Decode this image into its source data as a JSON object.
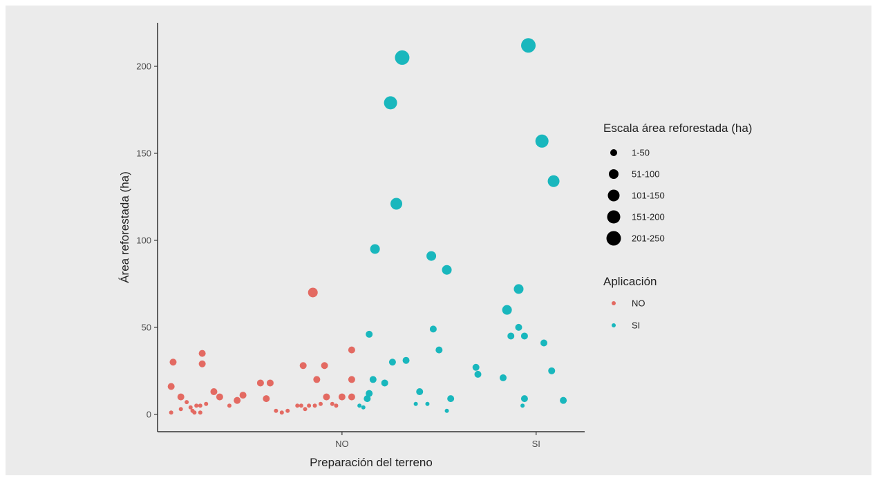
{
  "chart_data": {
    "type": "scatter",
    "title": "",
    "xlabel": "Preparación del terreno",
    "ylabel": "Área reforestada (ha)",
    "x_categories": [
      "NO",
      "SI"
    ],
    "ylim": [
      -10,
      225
    ],
    "y_ticks": [
      0,
      50,
      100,
      150,
      200
    ],
    "grid": false,
    "size_legend": {
      "title": "Escala área reforestada (ha)",
      "items": [
        "1-50",
        "51-100",
        "101-150",
        "151-200",
        "201-250"
      ]
    },
    "color_legend": {
      "title": "Aplicación",
      "items": [
        {
          "label": "NO",
          "color": "#e36a62"
        },
        {
          "label": "SI",
          "color": "#19b7bd"
        }
      ]
    },
    "series": [
      {
        "name": "NO",
        "color": "#e36a62",
        "points": [
          {
            "x": 0.12,
            "y": 1
          },
          {
            "x": 0.12,
            "y": 16
          },
          {
            "x": 0.13,
            "y": 30
          },
          {
            "x": 0.17,
            "y": 10
          },
          {
            "x": 0.17,
            "y": 3
          },
          {
            "x": 0.2,
            "y": 7
          },
          {
            "x": 0.22,
            "y": 4
          },
          {
            "x": 0.23,
            "y": 2
          },
          {
            "x": 0.24,
            "y": 1
          },
          {
            "x": 0.25,
            "y": 5
          },
          {
            "x": 0.27,
            "y": 1
          },
          {
            "x": 0.27,
            "y": 5
          },
          {
            "x": 0.28,
            "y": 35
          },
          {
            "x": 0.28,
            "y": 29
          },
          {
            "x": 0.3,
            "y": 6
          },
          {
            "x": 0.34,
            "y": 13
          },
          {
            "x": 0.37,
            "y": 10
          },
          {
            "x": 0.42,
            "y": 5
          },
          {
            "x": 0.46,
            "y": 8
          },
          {
            "x": 0.49,
            "y": 11
          },
          {
            "x": 0.58,
            "y": 18
          },
          {
            "x": 0.61,
            "y": 9
          },
          {
            "x": 0.63,
            "y": 18
          },
          {
            "x": 0.66,
            "y": 2
          },
          {
            "x": 0.69,
            "y": 1
          },
          {
            "x": 0.72,
            "y": 2
          },
          {
            "x": 0.77,
            "y": 5
          },
          {
            "x": 0.79,
            "y": 5
          },
          {
            "x": 0.8,
            "y": 28
          },
          {
            "x": 0.81,
            "y": 3
          },
          {
            "x": 0.83,
            "y": 5
          },
          {
            "x": 0.85,
            "y": 70
          },
          {
            "x": 0.86,
            "y": 5
          },
          {
            "x": 0.87,
            "y": 20
          },
          {
            "x": 0.89,
            "y": 6
          },
          {
            "x": 0.91,
            "y": 28
          },
          {
            "x": 0.92,
            "y": 10
          },
          {
            "x": 0.95,
            "y": 6
          },
          {
            "x": 0.97,
            "y": 5
          },
          {
            "x": 1.0,
            "y": 10
          },
          {
            "x": 1.05,
            "y": 10
          },
          {
            "x": 1.05,
            "y": 37
          },
          {
            "x": 1.05,
            "y": 20
          }
        ]
      },
      {
        "name": "SI",
        "color": "#19b7bd",
        "points": [
          {
            "x": 1.09,
            "y": 5
          },
          {
            "x": 1.11,
            "y": 4
          },
          {
            "x": 1.13,
            "y": 9
          },
          {
            "x": 1.14,
            "y": 12
          },
          {
            "x": 1.14,
            "y": 46
          },
          {
            "x": 1.16,
            "y": 20
          },
          {
            "x": 1.17,
            "y": 95
          },
          {
            "x": 1.22,
            "y": 18
          },
          {
            "x": 1.25,
            "y": 179
          },
          {
            "x": 1.26,
            "y": 30
          },
          {
            "x": 1.28,
            "y": 121
          },
          {
            "x": 1.31,
            "y": 205
          },
          {
            "x": 1.33,
            "y": 31
          },
          {
            "x": 1.38,
            "y": 6
          },
          {
            "x": 1.4,
            "y": 13
          },
          {
            "x": 1.44,
            "y": 6
          },
          {
            "x": 1.46,
            "y": 91
          },
          {
            "x": 1.47,
            "y": 49
          },
          {
            "x": 1.5,
            "y": 37
          },
          {
            "x": 1.54,
            "y": 83
          },
          {
            "x": 1.54,
            "y": 2
          },
          {
            "x": 1.56,
            "y": 9
          },
          {
            "x": 1.69,
            "y": 27
          },
          {
            "x": 1.7,
            "y": 23
          },
          {
            "x": 1.83,
            "y": 21
          },
          {
            "x": 1.85,
            "y": 60
          },
          {
            "x": 1.87,
            "y": 45
          },
          {
            "x": 1.91,
            "y": 50
          },
          {
            "x": 1.91,
            "y": 72
          },
          {
            "x": 1.93,
            "y": 5
          },
          {
            "x": 1.94,
            "y": 9
          },
          {
            "x": 1.94,
            "y": 45
          },
          {
            "x": 1.96,
            "y": 212
          },
          {
            "x": 2.03,
            "y": 157
          },
          {
            "x": 2.04,
            "y": 41
          },
          {
            "x": 2.08,
            "y": 25
          },
          {
            "x": 2.09,
            "y": 134
          },
          {
            "x": 2.14,
            "y": 8
          }
        ]
      }
    ]
  }
}
